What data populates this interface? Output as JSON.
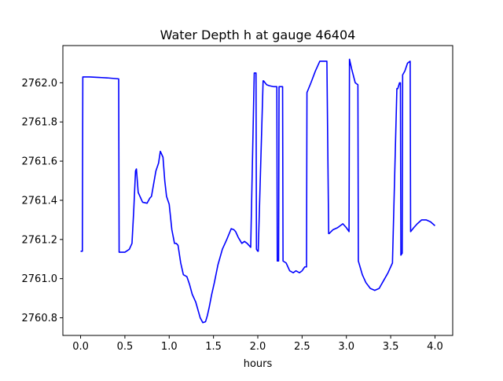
{
  "chart_data": {
    "type": "line",
    "title": "Water Depth h at gauge 46404",
    "xlabel": "hours",
    "ylabel": "",
    "xlim": [
      -0.2,
      4.2
    ],
    "ylim": [
      2760.71,
      2762.19
    ],
    "x_ticks": [
      0.0,
      0.5,
      1.0,
      1.5,
      2.0,
      2.5,
      3.0,
      3.5,
      4.0
    ],
    "x_tick_labels": [
      "0.0",
      "0.5",
      "1.0",
      "1.5",
      "2.0",
      "2.5",
      "3.0",
      "3.5",
      "4.0"
    ],
    "y_ticks": [
      2760.8,
      2761.0,
      2761.2,
      2761.4,
      2761.6,
      2761.8,
      2762.0
    ],
    "y_tick_labels": [
      "2760.8",
      "2761.0",
      "2761.2",
      "2761.4",
      "2761.6",
      "2761.8",
      "2762.0"
    ],
    "grid": false,
    "line_color": "#0000ff",
    "series": [
      {
        "x": [
          0.0,
          0.02,
          0.025,
          0.1,
          0.3,
          0.43,
          0.435,
          0.5,
          0.55,
          0.58,
          0.6,
          0.62,
          0.63,
          0.65,
          0.7,
          0.75,
          0.78,
          0.8,
          0.85,
          0.88,
          0.9,
          0.93,
          0.95,
          0.97,
          1.0,
          1.03,
          1.06,
          1.08,
          1.1,
          1.13,
          1.16,
          1.2,
          1.23,
          1.26,
          1.3,
          1.35,
          1.38,
          1.41,
          1.43,
          1.45,
          1.48,
          1.51,
          1.55,
          1.6,
          1.65,
          1.7,
          1.73,
          1.75,
          1.78,
          1.82,
          1.85,
          1.88,
          1.92,
          1.96,
          1.98,
          1.985,
          2.0,
          2.005,
          2.06,
          2.065,
          2.1,
          2.13,
          2.18,
          2.215,
          2.22,
          2.235,
          2.24,
          2.28,
          2.285,
          2.32,
          2.36,
          2.4,
          2.43,
          2.47,
          2.5,
          2.53,
          2.55,
          2.555,
          2.6,
          2.65,
          2.7,
          2.78,
          2.8,
          2.805,
          2.85,
          2.9,
          2.96,
          3.0,
          3.03,
          3.035,
          3.06,
          3.1,
          3.13,
          3.135,
          3.18,
          3.22,
          3.27,
          3.32,
          3.37,
          3.42,
          3.47,
          3.52,
          3.57,
          3.58,
          3.6,
          3.61,
          3.615,
          3.63,
          3.635,
          3.66,
          3.69,
          3.72,
          3.725,
          3.76,
          3.8,
          3.85,
          3.9,
          3.95,
          4.0
        ],
        "y": [
          2761.14,
          2761.14,
          2762.03,
          2762.03,
          2762.025,
          2762.02,
          2761.135,
          2761.135,
          2761.15,
          2761.18,
          2761.35,
          2761.55,
          2761.56,
          2761.44,
          2761.39,
          2761.385,
          2761.41,
          2761.42,
          2761.55,
          2761.59,
          2761.65,
          2761.62,
          2761.5,
          2761.42,
          2761.38,
          2761.25,
          2761.18,
          2761.18,
          2761.17,
          2761.08,
          2761.02,
          2761.01,
          2760.97,
          2760.92,
          2760.88,
          2760.8,
          2760.775,
          2760.78,
          2760.81,
          2760.85,
          2760.92,
          2760.98,
          2761.07,
          2761.15,
          2761.2,
          2761.255,
          2761.25,
          2761.24,
          2761.21,
          2761.18,
          2761.19,
          2761.18,
          2761.16,
          2762.05,
          2762.05,
          2761.15,
          2761.14,
          2761.14,
          2762.01,
          2762.01,
          2761.99,
          2761.985,
          2761.98,
          2761.98,
          2761.09,
          2761.09,
          2761.98,
          2761.98,
          2761.09,
          2761.08,
          2761.04,
          2761.03,
          2761.04,
          2761.03,
          2761.04,
          2761.06,
          2761.06,
          2761.95,
          2762.0,
          2762.06,
          2762.11,
          2762.11,
          2761.23,
          2761.23,
          2761.25,
          2761.26,
          2761.28,
          2761.26,
          2761.24,
          2762.12,
          2762.07,
          2762.0,
          2761.99,
          2761.09,
          2761.02,
          2760.98,
          2760.95,
          2760.94,
          2760.95,
          2760.99,
          2761.03,
          2761.08,
          2761.97,
          2761.97,
          2762.0,
          2762.0,
          2761.12,
          2761.13,
          2762.04,
          2762.06,
          2762.1,
          2762.11,
          2761.24,
          2761.26,
          2761.28,
          2761.3,
          2761.3,
          2761.29,
          2761.27
        ]
      }
    ]
  }
}
